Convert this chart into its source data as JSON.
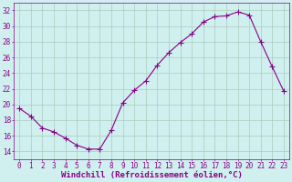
{
  "x": [
    0,
    1,
    2,
    3,
    4,
    5,
    6,
    7,
    8,
    9,
    10,
    11,
    12,
    13,
    14,
    15,
    16,
    17,
    18,
    19,
    20,
    21,
    22,
    23
  ],
  "y": [
    19.5,
    18.5,
    17.0,
    16.5,
    15.7,
    14.8,
    14.3,
    14.3,
    16.7,
    20.2,
    21.8,
    23.0,
    25.0,
    26.6,
    27.9,
    29.0,
    30.5,
    31.2,
    31.3,
    31.8,
    31.4,
    28.0,
    24.8,
    21.7
  ],
  "line_color": "#880088",
  "marker": "+",
  "marker_size": 4,
  "bg_color": "#cff0ee",
  "grid_color": "#aaccbb",
  "xlabel": "Windchill (Refroidissement éolien,°C)",
  "ylim": [
    13,
    33
  ],
  "xlim": [
    -0.5,
    23.5
  ],
  "yticks": [
    14,
    16,
    18,
    20,
    22,
    24,
    26,
    28,
    30,
    32
  ],
  "xticks": [
    0,
    1,
    2,
    3,
    4,
    5,
    6,
    7,
    8,
    9,
    10,
    11,
    12,
    13,
    14,
    15,
    16,
    17,
    18,
    19,
    20,
    21,
    22,
    23
  ],
  "tick_color": "#880088",
  "label_color": "#880088",
  "label_fontsize": 6.5,
  "tick_fontsize": 5.5,
  "linewidth": 0.8
}
